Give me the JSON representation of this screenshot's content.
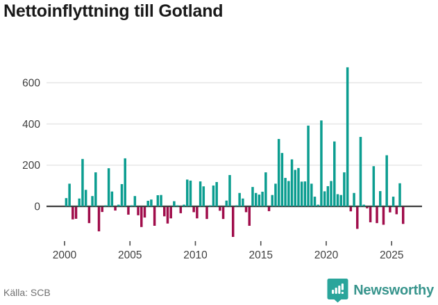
{
  "title": "Nettoinflyttning till Gotland",
  "source": "Källa: SCB",
  "brand": {
    "name": "Newsworthy",
    "badge_icon": "bar-chart-exclamation-badge"
  },
  "colors": {
    "positive": "#0b9d90",
    "negative": "#a00d4b",
    "gridline": "#e4e4e4",
    "axis": "#3c3c3c",
    "tick": "#4a4a4a",
    "tick_label": "#3f3f3f",
    "title": "#191919",
    "source_text": "#6f6f6f",
    "brand_teal": "#37948c",
    "badge_teal": "#2aa59b"
  },
  "chart_data": {
    "type": "bar",
    "title": "Nettoinflyttning till Gotland",
    "frequency": "quarterly",
    "start_period": "2000-Q1",
    "end_period": "2025-Q4",
    "xlabel": "",
    "ylabel": "",
    "y_ticks": [
      0,
      200,
      400,
      600
    ],
    "y_tick_labels": [
      "0",
      "200",
      "400",
      "600"
    ],
    "x_tick_years": [
      2000,
      2005,
      2010,
      2015,
      2020,
      2025
    ],
    "x_tick_labels": [
      "2000",
      "2005",
      "2010",
      "2015",
      "2020",
      "2025"
    ],
    "ylim": [
      -160,
      700
    ],
    "grid": "horizontal",
    "legend": "none",
    "values": [
      40,
      110,
      -60,
      -57,
      38,
      230,
      80,
      -78,
      50,
      165,
      -118,
      -24,
      5,
      185,
      72,
      -17,
      8,
      108,
      233,
      -37,
      5,
      50,
      -40,
      -97,
      -51,
      27,
      33,
      -91,
      54,
      55,
      -45,
      -80,
      -55,
      25,
      5,
      -30,
      8,
      130,
      125,
      -25,
      -55,
      121,
      97,
      -58,
      5,
      101,
      118,
      -18,
      -58,
      28,
      152,
      -145,
      5,
      65,
      38,
      -25,
      -91,
      94,
      65,
      57,
      71,
      165,
      -20,
      55,
      110,
      327,
      259,
      138,
      123,
      228,
      177,
      186,
      120,
      121,
      392,
      110,
      47,
      8,
      417,
      73,
      98,
      123,
      315,
      59,
      55,
      165,
      675,
      -21,
      65,
      -106,
      337,
      8,
      -6,
      -74,
      195,
      -78,
      74,
      -86,
      248,
      -26,
      47,
      -35,
      112,
      -82
    ]
  }
}
